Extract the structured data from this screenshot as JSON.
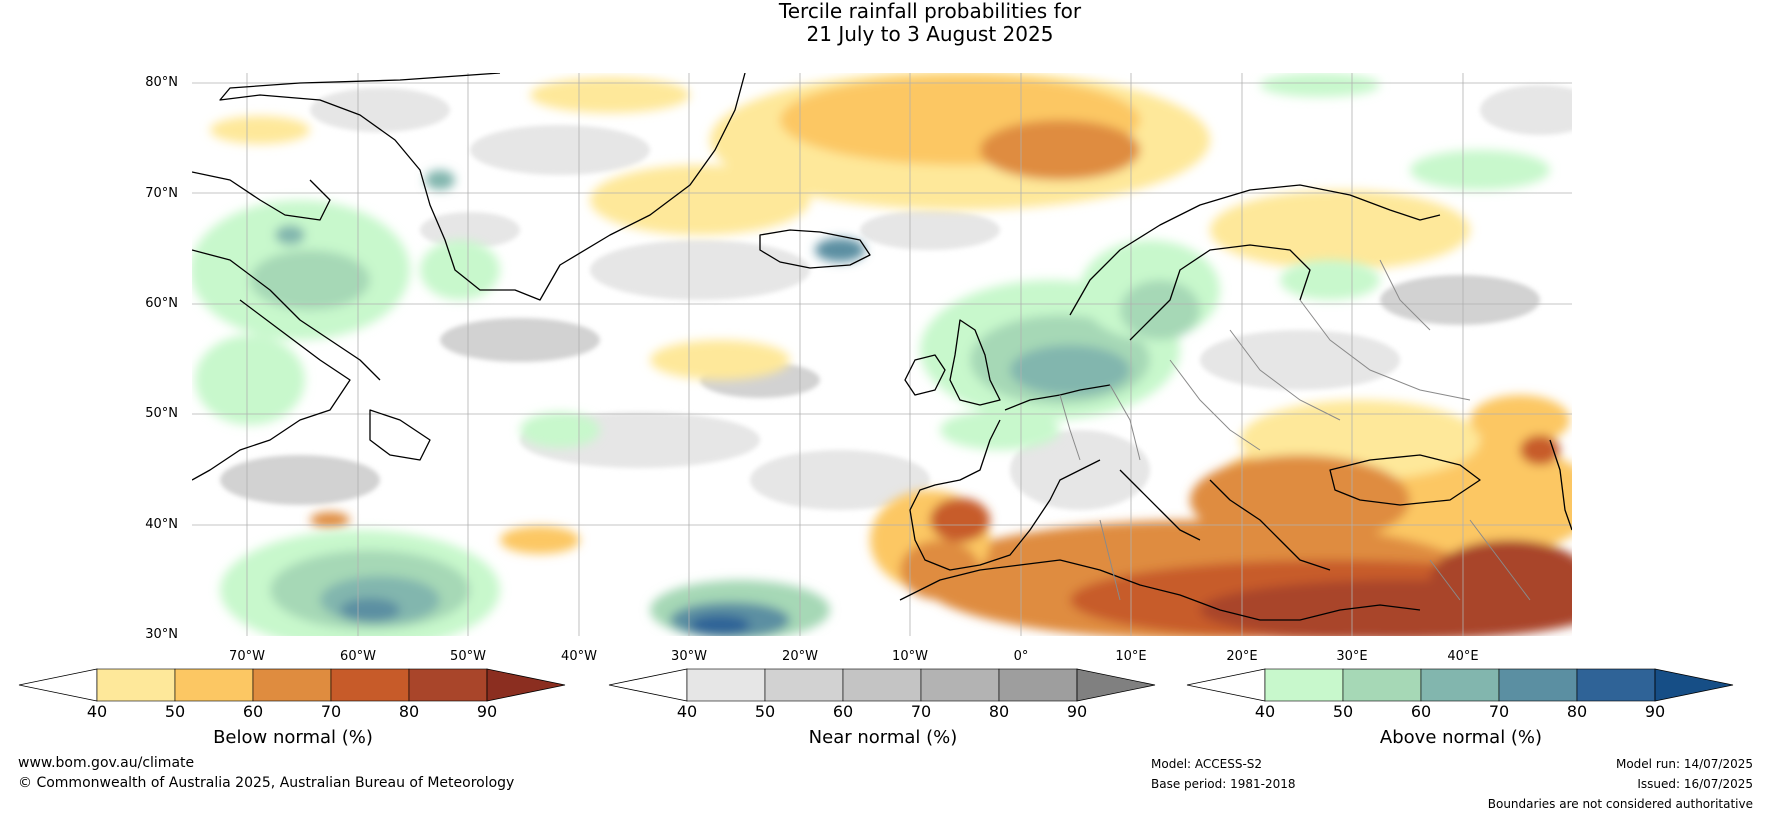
{
  "title": {
    "line1": "Tercile rainfall probabilities for",
    "line2": "21 July to 3 August 2025"
  },
  "map": {
    "lat_labels": [
      "80°N",
      "70°N",
      "60°N",
      "50°N",
      "40°N",
      "30°N"
    ],
    "lon_labels": [
      "70°W",
      "60°W",
      "50°W",
      "40°W",
      "30°W",
      "20°W",
      "10°W",
      "0°",
      "10°E",
      "20°E",
      "30°E",
      "40°E"
    ],
    "extent": {
      "lon": [
        -80,
        45
      ],
      "lat": [
        30,
        81
      ]
    }
  },
  "colorbars": [
    {
      "id": "below",
      "title": "Below normal (%)",
      "ticks": [
        "40",
        "50",
        "60",
        "70",
        "80",
        "90"
      ],
      "colors": [
        "#ffffff",
        "#fee89a",
        "#fcc763",
        "#df8c3f",
        "#c75b29",
        "#a9452a",
        "#8b2e20"
      ]
    },
    {
      "id": "near",
      "title": "Near normal (%)",
      "ticks": [
        "40",
        "50",
        "60",
        "70",
        "80",
        "90"
      ],
      "colors": [
        "#ffffff",
        "#e6e6e6",
        "#d2d2d2",
        "#c4c4c4",
        "#b3b3b3",
        "#9e9e9e",
        "#808080"
      ]
    },
    {
      "id": "above",
      "title": "Above normal (%)",
      "ticks": [
        "40",
        "50",
        "60",
        "70",
        "80",
        "90"
      ],
      "colors": [
        "#ffffff",
        "#c8f8cc",
        "#a6d8b6",
        "#82b6ae",
        "#5b8fa2",
        "#2f6397",
        "#164e86"
      ]
    }
  ],
  "footer": {
    "website": "www.bom.gov.au/climate",
    "copyright": "© Commonwealth of Australia 2025, Australian Bureau of Meteorology",
    "model": "Model: ACCESS-S2",
    "base_period": "Base period: 1981-2018",
    "model_run": "Model run: 14/07/2025",
    "issued": "Issued: 16/07/2025",
    "disclaimer": "Boundaries are not considered authoritative"
  }
}
